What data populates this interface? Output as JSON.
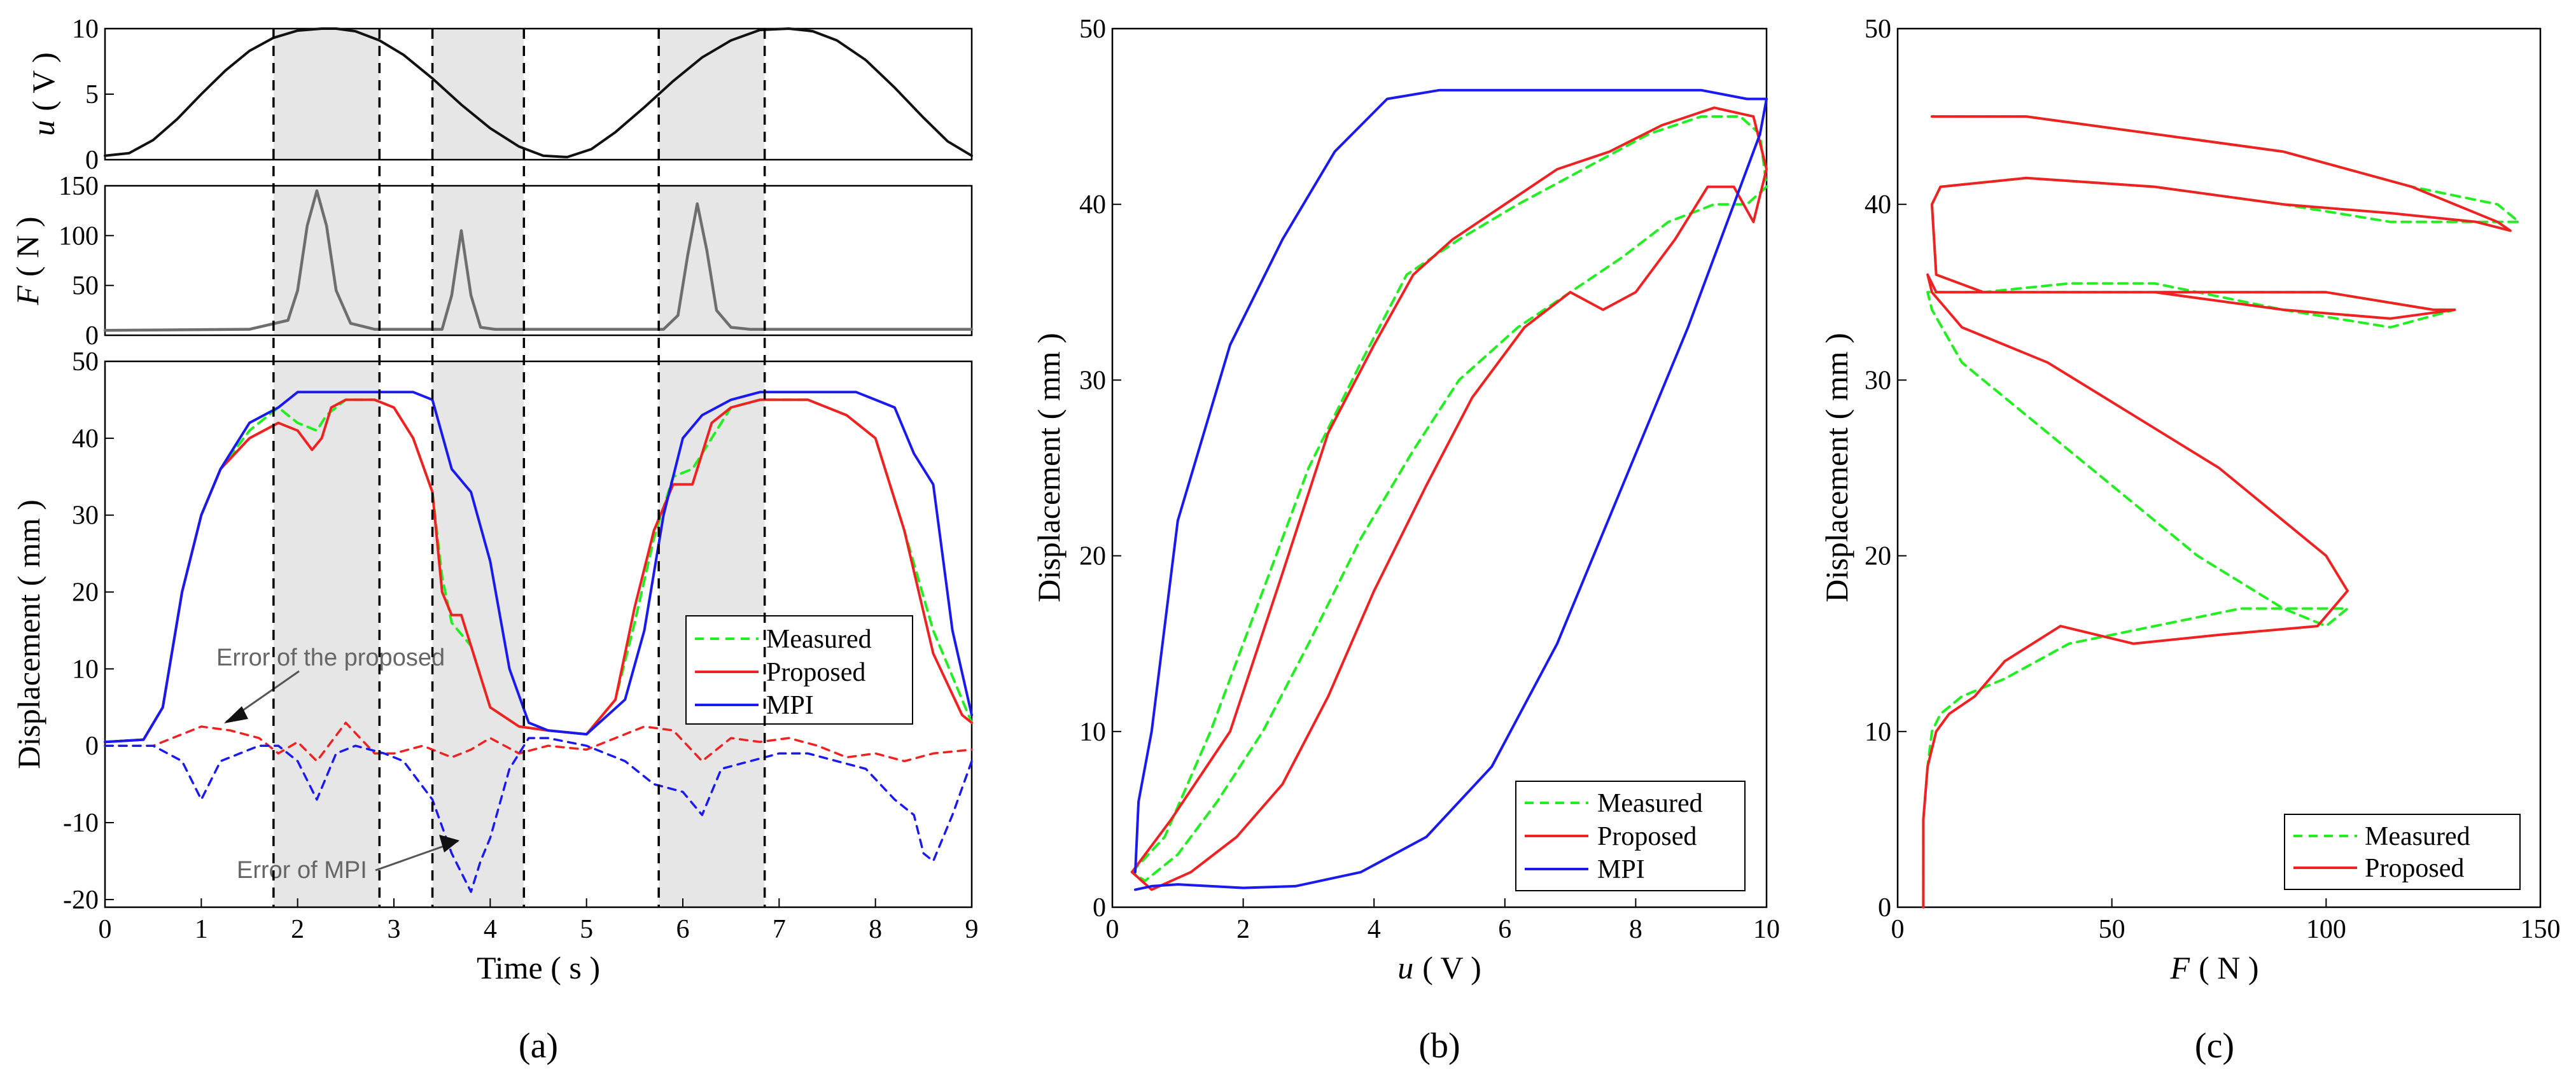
{
  "colors": {
    "measured": "#22ee22",
    "proposed": "#ee2222",
    "mpi": "#1a1aee",
    "highlight": "#e6e6e6",
    "signal": "#111111",
    "peak": "#6e6e6e"
  },
  "panel_a": {
    "caption": "(a)",
    "shaded_intervals": [
      [
        1.75,
        2.85
      ],
      [
        3.4,
        4.35
      ],
      [
        5.75,
        6.85
      ]
    ],
    "annotations": {
      "proposed_error": "Error of the proposed",
      "mpi_error": "Error of MPI"
    }
  },
  "panel_b": {
    "caption": "(b)"
  },
  "panel_c": {
    "caption": "(c)"
  },
  "chart_data": [
    {
      "id": "a-input",
      "type": "line",
      "ylabel_var": "u",
      "ylabel_unit": "( V )",
      "xlim": [
        0,
        9
      ],
      "ylim": [
        0,
        10
      ],
      "yticks": [
        0,
        5,
        10
      ],
      "series": [
        {
          "name": "u",
          "x": [
            0,
            0.25,
            0.5,
            0.75,
            1,
            1.25,
            1.5,
            1.75,
            2,
            2.25,
            2.4,
            2.6,
            2.85,
            3.1,
            3.4,
            3.7,
            4,
            4.3,
            4.55,
            4.8,
            5.05,
            5.3,
            5.6,
            5.9,
            6.2,
            6.5,
            6.8,
            7.1,
            7.35,
            7.6,
            7.9,
            8.2,
            8.5,
            8.75,
            9
          ],
          "values": [
            0.3,
            0.5,
            1.5,
            3.1,
            5,
            6.8,
            8.3,
            9.3,
            9.85,
            10,
            10,
            9.8,
            9.1,
            8,
            6.2,
            4.2,
            2.4,
            1,
            0.3,
            0.2,
            0.8,
            2.1,
            4,
            6,
            7.8,
            9.1,
            9.9,
            10,
            9.8,
            9.1,
            7.6,
            5.5,
            3.2,
            1.4,
            0.3
          ]
        }
      ]
    },
    {
      "id": "a-force",
      "type": "line",
      "ylabel_var": "F",
      "ylabel_unit": "( N )",
      "xlim": [
        0,
        9
      ],
      "ylim": [
        0,
        150
      ],
      "yticks": [
        0,
        50,
        100,
        150
      ],
      "series": [
        {
          "name": "F",
          "x": [
            0,
            1.5,
            1.9,
            2.0,
            2.1,
            2.2,
            2.3,
            2.4,
            2.55,
            2.8,
            3.5,
            3.6,
            3.7,
            3.8,
            3.9,
            4.05,
            5.8,
            5.95,
            6.05,
            6.15,
            6.25,
            6.35,
            6.5,
            6.7,
            9
          ],
          "values": [
            5,
            6,
            15,
            45,
            110,
            145,
            110,
            45,
            12,
            6,
            6,
            40,
            105,
            40,
            8,
            6,
            6,
            20,
            80,
            132,
            85,
            25,
            8,
            6,
            6
          ]
        }
      ]
    },
    {
      "id": "a-displacement",
      "type": "line",
      "xlabel": "Time ( s )",
      "ylabel": "Displacement ( mm )",
      "xlim": [
        0,
        9
      ],
      "ylim": [
        -21,
        50
      ],
      "xticks": [
        0,
        1,
        2,
        3,
        4,
        5,
        6,
        7,
        8,
        9
      ],
      "yticks": [
        -20,
        -10,
        0,
        10,
        20,
        30,
        40,
        50
      ],
      "series": [
        {
          "name": "Measured",
          "x": [
            0,
            0.4,
            0.6,
            0.8,
            1.0,
            1.2,
            1.5,
            1.8,
            2.0,
            2.2,
            2.3,
            2.5,
            2.8,
            3.0,
            3.2,
            3.4,
            3.5,
            3.6,
            3.8,
            4.0,
            4.3,
            4.6,
            5.0,
            5.3,
            5.5,
            5.7,
            5.9,
            6.1,
            6.3,
            6.5,
            6.8,
            7.0,
            7.3,
            7.7,
            8.0,
            8.3,
            8.6,
            9.0
          ],
          "values": [
            0.5,
            0.8,
            5,
            20,
            30,
            36,
            41,
            44,
            42,
            41,
            43,
            45,
            45,
            44,
            40,
            33,
            22,
            16,
            13,
            5,
            2.5,
            2,
            1.5,
            6,
            16,
            27,
            35,
            36,
            40,
            44,
            45,
            45,
            45,
            43,
            40,
            28,
            15,
            3
          ]
        },
        {
          "name": "Proposed",
          "x": [
            0,
            0.4,
            0.6,
            0.8,
            1.0,
            1.2,
            1.5,
            1.8,
            2.0,
            2.15,
            2.25,
            2.35,
            2.5,
            2.8,
            3.0,
            3.2,
            3.4,
            3.5,
            3.6,
            3.7,
            3.8,
            4.0,
            4.3,
            4.6,
            5.0,
            5.3,
            5.5,
            5.7,
            5.9,
            6.1,
            6.3,
            6.5,
            6.8,
            7.0,
            7.3,
            7.7,
            8.0,
            8.3,
            8.6,
            8.9,
            9.0
          ],
          "values": [
            0.5,
            0.8,
            5,
            20,
            30,
            36,
            40,
            42,
            41,
            38.5,
            40,
            44,
            45,
            45,
            44,
            40,
            33,
            20,
            17,
            17,
            13,
            5,
            2.5,
            2,
            1.5,
            6,
            18,
            28,
            34,
            34,
            42,
            44,
            45,
            45,
            45,
            43,
            40,
            28,
            12,
            4,
            3
          ]
        },
        {
          "name": "MPI",
          "x": [
            0,
            0.4,
            0.6,
            0.8,
            1.0,
            1.2,
            1.5,
            1.8,
            2.0,
            2.2,
            2.5,
            2.8,
            3.0,
            3.2,
            3.4,
            3.6,
            3.8,
            4.0,
            4.2,
            4.4,
            4.6,
            5.0,
            5.4,
            5.6,
            5.8,
            6.0,
            6.2,
            6.5,
            6.8,
            7.0,
            7.3,
            7.6,
            7.8,
            8.0,
            8.2,
            8.4,
            8.6,
            8.8,
            9.0
          ],
          "values": [
            0.5,
            0.8,
            5,
            20,
            30,
            36,
            42,
            44,
            46,
            46,
            46,
            46,
            46,
            46,
            45,
            36,
            33,
            24,
            10,
            3,
            2,
            1.5,
            6,
            15,
            30,
            40,
            43,
            45,
            46,
            46,
            46,
            46,
            46,
            45,
            44,
            38,
            34,
            15,
            4
          ]
        },
        {
          "name": "Error of the proposed",
          "style": "dashed",
          "x": [
            0,
            0.5,
            1.0,
            1.3,
            1.6,
            1.8,
            2.0,
            2.2,
            2.5,
            2.8,
            3.0,
            3.3,
            3.6,
            3.8,
            4.0,
            4.3,
            4.6,
            5.0,
            5.3,
            5.6,
            5.9,
            6.2,
            6.5,
            6.8,
            7.1,
            7.4,
            7.7,
            8.0,
            8.3,
            8.6,
            9.0
          ],
          "values": [
            0,
            0,
            2.5,
            2,
            1,
            -1,
            0.5,
            -2,
            3,
            -1,
            -1,
            0,
            -1.5,
            -0.5,
            1,
            -1,
            0,
            -0.5,
            1,
            2.5,
            2,
            -2,
            1,
            0.5,
            1,
            0,
            -1.5,
            -1,
            -2,
            -1,
            -0.5
          ]
        },
        {
          "name": "Error of MPI",
          "style": "dashed",
          "x": [
            0,
            0.5,
            0.8,
            1.0,
            1.2,
            1.4,
            1.6,
            1.8,
            2.0,
            2.2,
            2.4,
            2.6,
            2.9,
            3.1,
            3.4,
            3.6,
            3.8,
            3.9,
            4.0,
            4.2,
            4.4,
            4.6,
            5.0,
            5.4,
            5.7,
            6.0,
            6.2,
            6.4,
            6.7,
            7.0,
            7.3,
            7.6,
            7.9,
            8.2,
            8.4,
            8.5,
            8.6,
            8.8,
            9.0
          ],
          "values": [
            0,
            0,
            -2,
            -7,
            -2,
            -1,
            0,
            0,
            -2,
            -7,
            -1,
            0,
            -1,
            -2,
            -7,
            -14,
            -19,
            -15,
            -12,
            -3,
            1,
            1,
            0,
            -2,
            -5,
            -6,
            -9,
            -3,
            -2,
            -1,
            -1,
            -2,
            -3,
            -7,
            -9,
            -14,
            -15,
            -9,
            -2
          ]
        }
      ]
    },
    {
      "id": "b",
      "type": "line",
      "xlabel_var": "u",
      "xlabel_unit": "( V )",
      "ylabel": "Displacement ( mm )",
      "xlim": [
        0,
        10
      ],
      "ylim": [
        0,
        50
      ],
      "xticks": [
        0,
        2,
        4,
        6,
        8,
        10
      ],
      "yticks": [
        0,
        10,
        20,
        30,
        40,
        50
      ],
      "legend": [
        "Measured",
        "Proposed",
        "MPI"
      ],
      "legend_loc": "bottom-right",
      "series": [
        {
          "name": "Measured",
          "x": [
            0.3,
            0.8,
            1.5,
            2.2,
            3.0,
            3.8,
            4.5,
            5.3,
            6.2,
            7.2,
            8.2,
            9.0,
            9.6,
            9.9,
            10,
            9.7,
            9.2,
            8.5,
            7.8,
            7.0,
            6.2,
            5.3,
            4.6,
            3.8,
            3.0,
            2.3,
            1.6,
            1.0,
            0.5,
            0.3
          ],
          "values": [
            2,
            4,
            10,
            17,
            25,
            31,
            36,
            38,
            40,
            42,
            44,
            45,
            45,
            44,
            41,
            40,
            40,
            39,
            37,
            35,
            33,
            30,
            26,
            21,
            15,
            10,
            6,
            3,
            1.5,
            2
          ]
        },
        {
          "name": "Proposed",
          "x": [
            0.3,
            0.9,
            1.8,
            2.6,
            3.3,
            4.0,
            4.6,
            5.2,
            6.0,
            6.8,
            7.6,
            8.4,
            9.2,
            9.8,
            10,
            9.8,
            9.5,
            9.1,
            8.6,
            8.0,
            7.5,
            7.0,
            6.3,
            5.5,
            4.8,
            4.0,
            3.3,
            2.6,
            1.9,
            1.2,
            0.6,
            0.3
          ],
          "values": [
            2,
            5,
            10,
            19,
            27,
            32,
            36,
            38,
            40,
            42,
            43,
            44.5,
            45.5,
            45,
            42,
            39,
            41,
            41,
            38,
            35,
            34,
            35,
            33,
            29,
            24,
            18,
            12,
            7,
            4,
            2,
            1,
            2
          ]
        },
        {
          "name": "MPI",
          "x": [
            0.35,
            0.6,
            1.0,
            1.5,
            2.0,
            2.8,
            3.8,
            4.8,
            5.8,
            6.8,
            7.8,
            8.8,
            9.5,
            9.9,
            10.0,
            9.7,
            9.0,
            8.2,
            7.4,
            6.6,
            5.8,
            5.0,
            4.2,
            3.4,
            2.6,
            1.8,
            1.0,
            0.6,
            0.4,
            0.35
          ],
          "values": [
            1,
            1.2,
            1.3,
            1.2,
            1.1,
            1.2,
            2,
            4,
            8,
            15,
            24,
            33,
            40,
            44,
            46,
            46,
            46.5,
            46.5,
            46.5,
            46.5,
            46.5,
            46.5,
            46,
            43,
            38,
            32,
            22,
            10,
            6,
            2
          ]
        }
      ]
    },
    {
      "id": "c",
      "type": "line",
      "xlabel_var": "F",
      "xlabel_unit": "( N )",
      "ylabel": "Displacement ( mm )",
      "xlim": [
        0,
        150
      ],
      "ylim": [
        0,
        50
      ],
      "xticks": [
        0,
        50,
        100,
        150
      ],
      "yticks": [
        0,
        10,
        20,
        30,
        40,
        50
      ],
      "legend": [
        "Measured",
        "Proposed"
      ],
      "legend_loc": "bottom-right",
      "series": [
        {
          "name": "Measured",
          "x": [
            6,
            6,
            7,
            8,
            10,
            15,
            25,
            40,
            60,
            80,
            95,
            105,
            100,
            90,
            70,
            50,
            30,
            15,
            8,
            7,
            9,
            20,
            40,
            60,
            90,
            115,
            130,
            125,
            100,
            70,
            40,
            20,
            9,
            8,
            10,
            30,
            60,
            90,
            115,
            130,
            145,
            140,
            120,
            90,
            60,
            30,
            10,
            8
          ],
          "values": [
            0,
            5,
            8,
            10,
            11,
            12,
            13,
            15,
            16,
            17,
            17,
            17,
            16,
            17,
            20,
            24,
            28,
            31,
            34,
            35,
            35,
            35,
            35.5,
            35.5,
            34,
            33,
            34,
            34,
            35,
            35,
            35,
            35,
            36,
            40,
            41,
            41.5,
            41,
            40,
            39,
            39,
            39,
            40,
            41,
            43,
            44,
            45,
            45,
            45
          ]
        },
        {
          "name": "Proposed",
          "x": [
            6,
            6,
            7,
            9,
            12,
            18,
            25,
            38,
            55,
            75,
            98,
            105,
            100,
            90,
            75,
            55,
            35,
            15,
            8,
            7,
            9,
            20,
            40,
            60,
            90,
            115,
            130,
            125,
            100,
            70,
            40,
            20,
            9,
            8,
            10,
            30,
            60,
            90,
            115,
            135,
            143,
            140,
            120,
            90,
            60,
            30,
            10,
            8
          ],
          "values": [
            0,
            5,
            8,
            10,
            11,
            12,
            14,
            16,
            15,
            15.5,
            16,
            18,
            20,
            22,
            25,
            28,
            31,
            33,
            35,
            36,
            35,
            35,
            35,
            35,
            34,
            33.5,
            34,
            34,
            35,
            35,
            35,
            35,
            36,
            40,
            41,
            41.5,
            41,
            40,
            39.5,
            39,
            38.5,
            39,
            41,
            43,
            44,
            45,
            45,
            45
          ]
        }
      ]
    }
  ]
}
